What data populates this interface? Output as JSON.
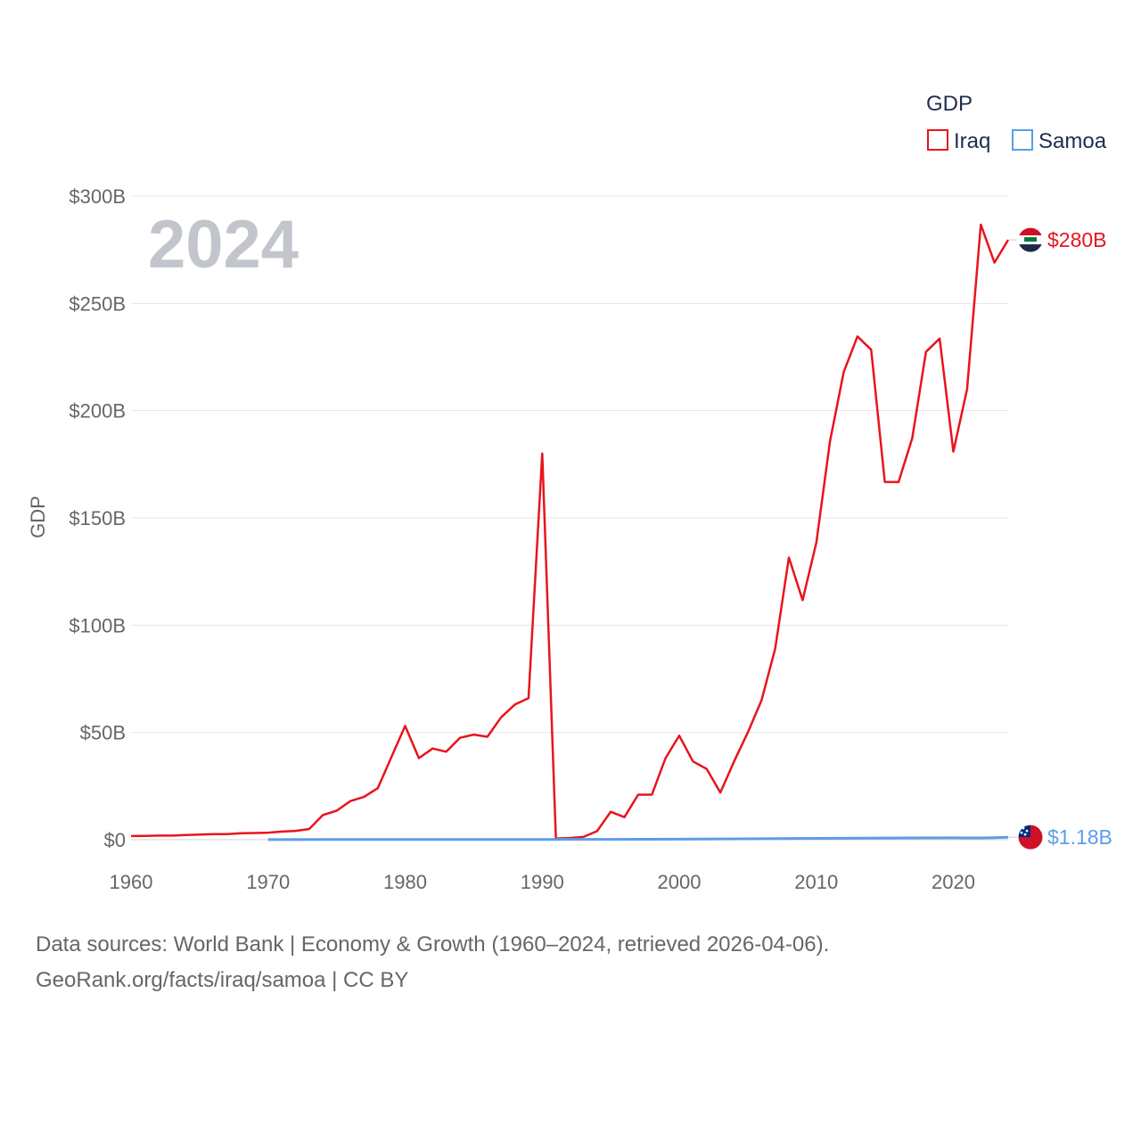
{
  "chart_data": {
    "type": "line",
    "current_year": "2024",
    "ylabel": "GDP",
    "legend_title": "GDP",
    "legend_position": "top-right",
    "xlim": [
      1960,
      2024
    ],
    "ylim": [
      0,
      300
    ],
    "x_ticks": [
      1960,
      1970,
      1980,
      1990,
      2000,
      2010,
      2020
    ],
    "y_ticks": [
      {
        "value": 0,
        "label": "$0"
      },
      {
        "value": 50,
        "label": "$50B"
      },
      {
        "value": 100,
        "label": "$100B"
      },
      {
        "value": 150,
        "label": "$150B"
      },
      {
        "value": 200,
        "label": "$200B"
      },
      {
        "value": 250,
        "label": "$250B"
      },
      {
        "value": 300,
        "label": "$300B"
      }
    ],
    "grid": true,
    "series": [
      {
        "name": "Iraq",
        "color": "#e8141c",
        "end_label": "$280B",
        "flag_icon": "iraq-flag-icon",
        "x": [
          1960,
          1961,
          1962,
          1963,
          1964,
          1965,
          1966,
          1967,
          1968,
          1969,
          1970,
          1971,
          1972,
          1973,
          1974,
          1975,
          1976,
          1977,
          1978,
          1979,
          1980,
          1981,
          1982,
          1983,
          1984,
          1985,
          1986,
          1987,
          1988,
          1989,
          1990,
          1991,
          1992,
          1993,
          1994,
          1995,
          1996,
          1997,
          1998,
          1999,
          2000,
          2001,
          2002,
          2003,
          2004,
          2005,
          2006,
          2007,
          2008,
          2009,
          2010,
          2011,
          2012,
          2013,
          2014,
          2015,
          2016,
          2017,
          2018,
          2019,
          2020,
          2021,
          2022,
          2023,
          2024
        ],
        "values": [
          1.7,
          1.8,
          1.9,
          1.9,
          2.2,
          2.4,
          2.6,
          2.6,
          3.0,
          3.1,
          3.3,
          3.8,
          4.1,
          5.0,
          11.5,
          13.5,
          18.0,
          20.0,
          24.0,
          38.5,
          53.0,
          38.0,
          42.5,
          41.0,
          47.5,
          49.0,
          48.0,
          57.0,
          63.0,
          66.0,
          180.0,
          0.6,
          0.8,
          1.3,
          4.0,
          13.0,
          10.5,
          21.0,
          21.0,
          38.0,
          48.5,
          36.5,
          33.0,
          22.0,
          36.5,
          50.0,
          65.0,
          89.0,
          131.5,
          111.7,
          138.5,
          185.7,
          218.0,
          234.6,
          228.4,
          166.8,
          166.7,
          187.2,
          227.4,
          233.6,
          180.9,
          210.0,
          286.7,
          269.0,
          279.6
        ]
      },
      {
        "name": "Samoa",
        "color": "#5b9ee6",
        "end_label": "$1.18B",
        "flag_icon": "samoa-flag-icon",
        "x": [
          1970,
          1975,
          1980,
          1985,
          1990,
          1995,
          2000,
          2005,
          2010,
          2015,
          2020,
          2021,
          2022,
          2023,
          2024
        ],
        "values": [
          0.05,
          0.08,
          0.12,
          0.09,
          0.12,
          0.17,
          0.24,
          0.43,
          0.64,
          0.78,
          0.87,
          0.84,
          0.83,
          0.94,
          1.18
        ]
      }
    ]
  },
  "footer": {
    "line1": "Data sources: World Bank | Economy & Growth (1960–2024, retrieved 2026-04-06).",
    "line2": "GeoRank.org/facts/iraq/samoa | CC BY"
  }
}
